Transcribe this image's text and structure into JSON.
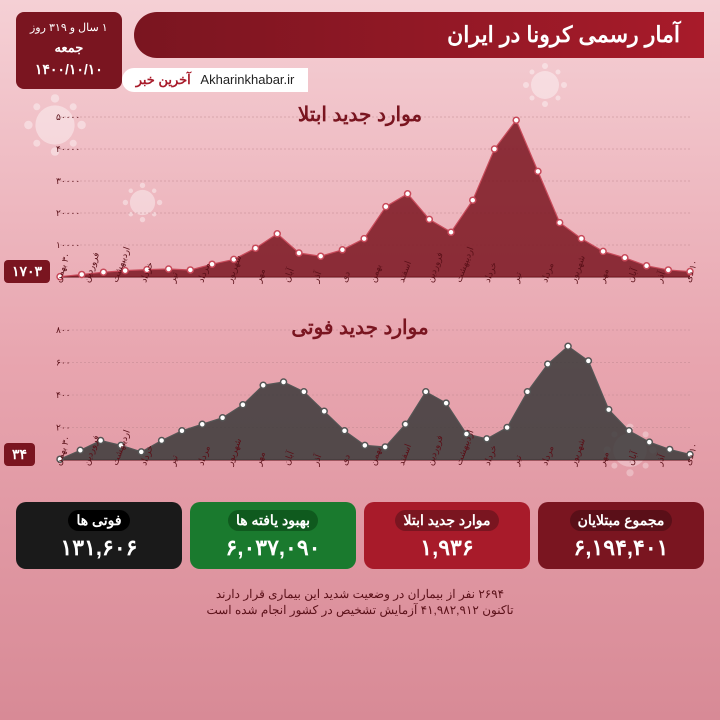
{
  "header": {
    "title": "آمار رسمی کرونا در ایران",
    "site": "Akharinkhabar.ir",
    "site_brand": "آخرین خبر",
    "duration": "۱ سال و ۳۱۹ روز",
    "day": "جمعه",
    "date": "۱۴۰۰/۱۰/۱۰"
  },
  "chart1": {
    "title": "موارد جدید ابتلا",
    "type": "area",
    "area_color": "#7a1520",
    "marker_color": "#c84a5a",
    "grid_color": "#c08890",
    "ylim": [
      0,
      50000
    ],
    "yticks": [
      10000,
      20000,
      30000,
      40000,
      50000
    ],
    "ytick_labels": [
      "۱۰۰۰۰",
      "۲۰۰۰۰",
      "۳۰۰۰۰",
      "۴۰۰۰۰",
      "۵۰۰۰۰"
    ],
    "end_value": "۱۷۰۳",
    "x_labels": [
      "۳۰ بهمن",
      "فروردین",
      "اردیبهشت",
      "خرداد",
      "تیر",
      "مرداد",
      "شهریور",
      "مهر",
      "آبان",
      "آذر",
      "دی",
      "بهمن",
      "اسفند",
      "فروردین",
      "اردیبهشت",
      "خرداد",
      "تیر",
      "مرداد",
      "شهریور",
      "مهر",
      "آبان",
      "آذر",
      "۱۰ دی"
    ],
    "values": [
      100,
      800,
      1500,
      2000,
      2300,
      2500,
      2200,
      4000,
      5500,
      9000,
      13500,
      7500,
      6500,
      8500,
      12000,
      22000,
      26000,
      18000,
      14000,
      24000,
      40000,
      49000,
      33000,
      17000,
      12000,
      8000,
      6000,
      3500,
      2200,
      1703
    ],
    "markers_every": 1
  },
  "chart2": {
    "title": "موارد جدید فوتی",
    "type": "area",
    "area_color": "#3a3a3a",
    "marker_color": "#555",
    "ylim": [
      0,
      800
    ],
    "yticks": [
      200,
      400,
      600,
      800
    ],
    "ytick_labels": [
      "۲۰۰",
      "۴۰۰",
      "۶۰۰",
      "۸۰۰"
    ],
    "end_value": "۳۴",
    "x_labels": [
      "۳۰ بهمن",
      "فروردین",
      "اردیبهشت",
      "خرداد",
      "تیر",
      "مرداد",
      "شهریور",
      "مهر",
      "آبان",
      "آذر",
      "دی",
      "بهمن",
      "اسفند",
      "فروردین",
      "اردیبهشت",
      "خرداد",
      "تیر",
      "مرداد",
      "شهریور",
      "مهر",
      "آبان",
      "آذر",
      "۱۰ دی"
    ],
    "values": [
      5,
      60,
      120,
      90,
      50,
      120,
      180,
      220,
      260,
      340,
      460,
      480,
      420,
      300,
      180,
      90,
      80,
      220,
      420,
      350,
      160,
      130,
      200,
      420,
      590,
      700,
      610,
      310,
      180,
      110,
      65,
      34
    ]
  },
  "stats": [
    {
      "label": "مجموع مبتلایان",
      "value": "۶,۱۹۴,۴۰۱",
      "bg": "#7a1520",
      "label_bg": "#5a0f18"
    },
    {
      "label": "موارد جدید ابتلا",
      "value": "۱,۹۳۶",
      "bg": "#a81b2a",
      "label_bg": "#7a1520"
    },
    {
      "label": "بهبود یافته ها",
      "value": "۶,۰۳۷,۰۹۰",
      "bg": "#1a7a2e",
      "label_bg": "#0f5a1e"
    },
    {
      "label": "فوتی ها",
      "value": "۱۳۱,۶۰۶",
      "bg": "#1a1a1a",
      "label_bg": "#000"
    }
  ],
  "footer": {
    "line1": "۲۶۹۴ نفر از بیماران در وضعیت شدید این بیماری قرار دارند",
    "line2": "تاکنون ۴۱,۹۸۲,۹۱۲ آزمایش تشخیص در کشور انجام شده است"
  }
}
